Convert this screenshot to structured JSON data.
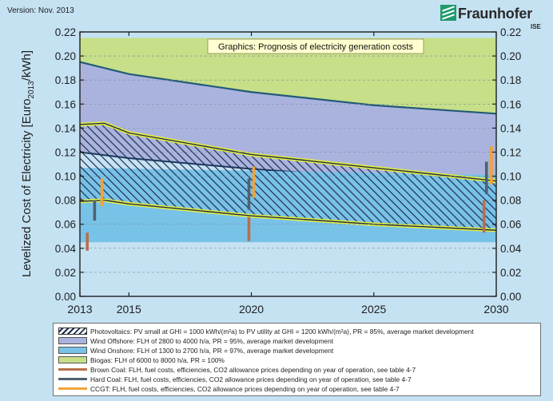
{
  "header": {
    "version": "Version: Nov. 2013",
    "logo_name": "Fraunhofer",
    "logo_unit": "ISE"
  },
  "chart_data": {
    "type": "area",
    "title": "Graphics: Prognosis of electricity generation costs",
    "ylabel": "Levelized Cost of Electricity [Euro2013/kWh]",
    "ylabel_parts": [
      "Levelized Cost of Electricity [Euro",
      "2013",
      "/kWh]"
    ],
    "xlabel": "",
    "xlim": [
      2013,
      2030
    ],
    "ylim": [
      0.0,
      0.22
    ],
    "x_ticks": [
      2013,
      2015,
      2020,
      2025,
      2030
    ],
    "y_ticks": [
      "0.00",
      "0.02",
      "0.04",
      "0.06",
      "0.08",
      "0.10",
      "0.12",
      "0.14",
      "0.16",
      "0.18",
      "0.20",
      "0.22"
    ],
    "grid": true,
    "legend_position": "bottom",
    "series": [
      {
        "name": "Biogas: FLH of 6000 to 8000 h/a, PR = 100%",
        "kind": "band",
        "color": "#c6df88",
        "x": [
          2013,
          2030
        ],
        "upper": [
          0.215,
          0.215
        ],
        "lower": [
          0.135,
          0.135
        ]
      },
      {
        "name": "Wind Offshore: FLH of 2800 to 4000 h/a, PR = 95%, average market development",
        "kind": "band",
        "color": "#aab3de",
        "x": [
          2013,
          2015,
          2020,
          2025,
          2030
        ],
        "upper": [
          0.195,
          0.185,
          0.17,
          0.159,
          0.152
        ],
        "lower": [
          0.12,
          0.115,
          0.106,
          0.099,
          0.094
        ]
      },
      {
        "name": "Wind Onshore: FLH of 1300 to 2700 h/a, PR = 97%, average market development",
        "kind": "band",
        "color": "#78c2e8",
        "x": [
          2013,
          2030
        ],
        "upper": [
          0.107,
          0.101
        ],
        "lower": [
          0.045,
          0.045
        ]
      },
      {
        "name": "Photovoltaics: PV small at GHI = 1000 kWh/(m²a) to PV utility at GHI = 1200 kWh/(m²a), PR = 85%, average market development",
        "kind": "hatched",
        "color": "#1d2d4f",
        "x": [
          2013,
          2014,
          2015,
          2020,
          2025,
          2030
        ],
        "upper": [
          0.143,
          0.144,
          0.136,
          0.118,
          0.107,
          0.096
        ],
        "lower": [
          0.079,
          0.08,
          0.077,
          0.067,
          0.06,
          0.055
        ]
      },
      {
        "name": "Brown Coal: FLH, fuel costs, efficiencies, CO2 allowance prices depending on year of operation, see table 4-7",
        "kind": "range",
        "color": "#b8704a",
        "bars": [
          {
            "x": 2013.3,
            "low": 0.038,
            "high": 0.053
          },
          {
            "x": 2019.9,
            "low": 0.046,
            "high": 0.066
          },
          {
            "x": 2029.5,
            "low": 0.053,
            "high": 0.08
          }
        ]
      },
      {
        "name": "Hard Coal: FLH, fuel costs, efficiencies, CO2 allowance prices depending on year of operation, see table 4-7",
        "kind": "range",
        "color": "#4f6170",
        "bars": [
          {
            "x": 2013.6,
            "low": 0.063,
            "high": 0.08
          },
          {
            "x": 2019.9,
            "low": 0.072,
            "high": 0.098
          },
          {
            "x": 2029.6,
            "low": 0.085,
            "high": 0.112
          }
        ]
      },
      {
        "name": "CCGT: FLH, fuel costs, efficiencies, CO2 allowance prices depending on year of operation, see table 4-7",
        "kind": "range",
        "color": "#f1a33a",
        "bars": [
          {
            "x": 2013.9,
            "low": 0.075,
            "high": 0.098
          },
          {
            "x": 2020.1,
            "low": 0.082,
            "high": 0.108
          },
          {
            "x": 2029.8,
            "low": 0.093,
            "high": 0.125
          }
        ]
      }
    ]
  },
  "legend": [
    {
      "label": "Photovoltaics: PV small at GHI = 1000 kWh/(m²a) to PV utility at GHI = 1200 kWh/(m²a), PR = 85%, average market development",
      "style": "hatch",
      "color": "#1d2d4f"
    },
    {
      "label": "Wind Offshore: FLH of 2800 to 4000 h/a, PR = 95%, average market development",
      "style": "box",
      "color": "#aab3de"
    },
    {
      "label": "Wind Onshore: FLH of 1300 to 2700 h/a, PR = 97%, average market development",
      "style": "box",
      "color": "#78c2e8"
    },
    {
      "label": "Biogas: FLH of 6000 to 8000 h/a, PR = 100%",
      "style": "box",
      "color": "#c6df88"
    },
    {
      "label": "Brown Coal: FLH, fuel costs, efficiencies, CO2 allowance prices depending on year of operation, see table 4-7",
      "style": "line",
      "color": "#b8704a"
    },
    {
      "label": "Hard Coal: FLH, fuel costs, efficiencies, CO2 allowance prices depending on year of operation, see table 4-7",
      "style": "line",
      "color": "#4f6170"
    },
    {
      "label": "CCGT: FLH, fuel costs, efficiencies, CO2 allowance prices depending on year of operation, see table 4-7",
      "style": "line",
      "color": "#f1a33a"
    }
  ]
}
